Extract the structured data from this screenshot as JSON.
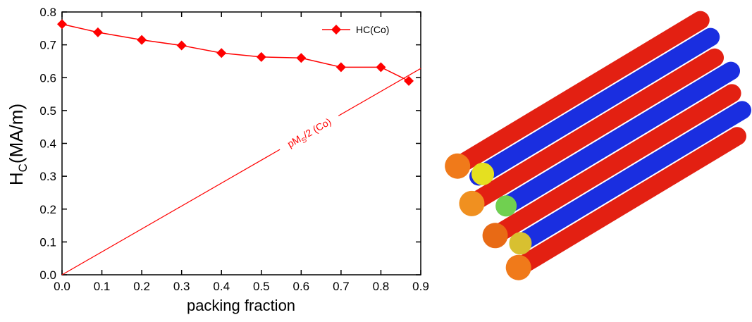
{
  "chart_data": {
    "type": "line",
    "xlabel": "packing fraction",
    "ylabel": [
      "H",
      "C",
      "(MA/m)"
    ],
    "x": [
      0.0,
      0.09,
      0.2,
      0.3,
      0.4,
      0.5,
      0.6,
      0.7,
      0.8,
      0.87
    ],
    "series": [
      {
        "name": "HC(Co)",
        "color": "#ff0000",
        "values": [
          0.763,
          0.738,
          0.715,
          0.698,
          0.675,
          0.663,
          0.66,
          0.632,
          0.632,
          0.59
        ]
      }
    ],
    "reference_line": {
      "label": [
        "pM",
        "S",
        "/2 (Co)"
      ],
      "color": "#ff0000",
      "x": [
        0.0,
        0.9
      ],
      "values": [
        0.0,
        0.628
      ]
    },
    "xlim": [
      0.0,
      0.9
    ],
    "ylim": [
      0.0,
      0.8
    ],
    "xticks": [
      {
        "value": 0,
        "label": "0.0"
      },
      0.1,
      0.2,
      0.3,
      0.4,
      0.5,
      0.6,
      0.7,
      0.8,
      0.9
    ],
    "yticks": [
      {
        "value": 0,
        "label": "0.0"
      },
      0.1,
      0.2,
      0.3,
      0.4,
      0.5,
      0.6,
      0.7,
      0.8
    ],
    "legend": "upper right"
  }
}
